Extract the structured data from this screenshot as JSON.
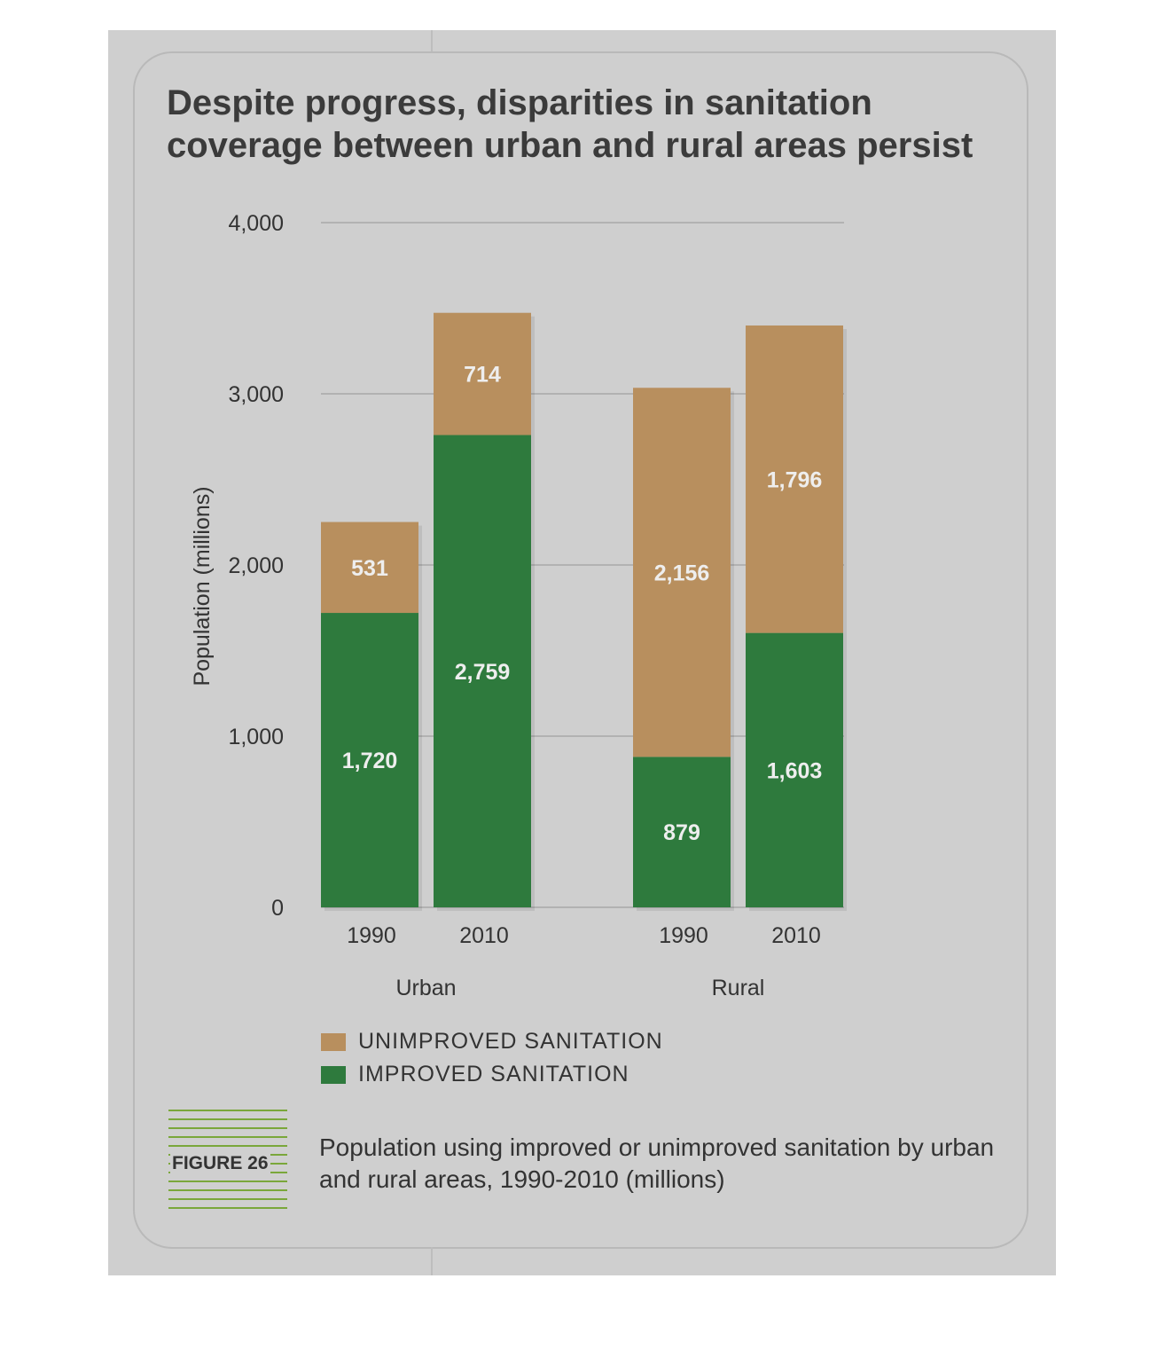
{
  "title": "Despite progress, disparities in sanitation coverage between urban and rural areas persist",
  "figure_label": "FIGURE 26",
  "caption": "Population using improved or unimproved sanitation by urban and rural areas, 1990-2010 (millions)",
  "colors": {
    "unimproved": "#b88f5e",
    "improved": "#2e7a3d",
    "grid": "#a8a8a8",
    "background": "#cfcfcf"
  },
  "legend": [
    {
      "label": "UNIMPROVED SANITATION",
      "color": "#b88f5e"
    },
    {
      "label": "IMPROVED SANITATION",
      "color": "#2e7a3d"
    }
  ],
  "chart_data": {
    "type": "bar",
    "stacked": true,
    "title": "Despite progress, disparities in sanitation coverage between urban and rural areas persist",
    "ylabel": "Population (millions)",
    "ylim": [
      0,
      4000
    ],
    "yticks": [
      "0",
      "1,000",
      "2,000",
      "3,000",
      "4,000"
    ],
    "grid": true,
    "legend_position": "bottom-left",
    "groups": [
      {
        "name": "Urban",
        "categories": [
          "1990",
          "2010"
        ]
      },
      {
        "name": "Rural",
        "categories": [
          "1990",
          "2010"
        ]
      }
    ],
    "series": [
      {
        "name": "IMPROVED SANITATION",
        "values": [
          1720,
          2759,
          879,
          1603
        ],
        "labels": [
          "1,720",
          "2,759",
          "879",
          "1,603"
        ]
      },
      {
        "name": "UNIMPROVED SANITATION",
        "values": [
          531,
          714,
          2156,
          1796
        ],
        "labels": [
          "531",
          "714",
          "2,156",
          "1,796"
        ]
      }
    ]
  }
}
